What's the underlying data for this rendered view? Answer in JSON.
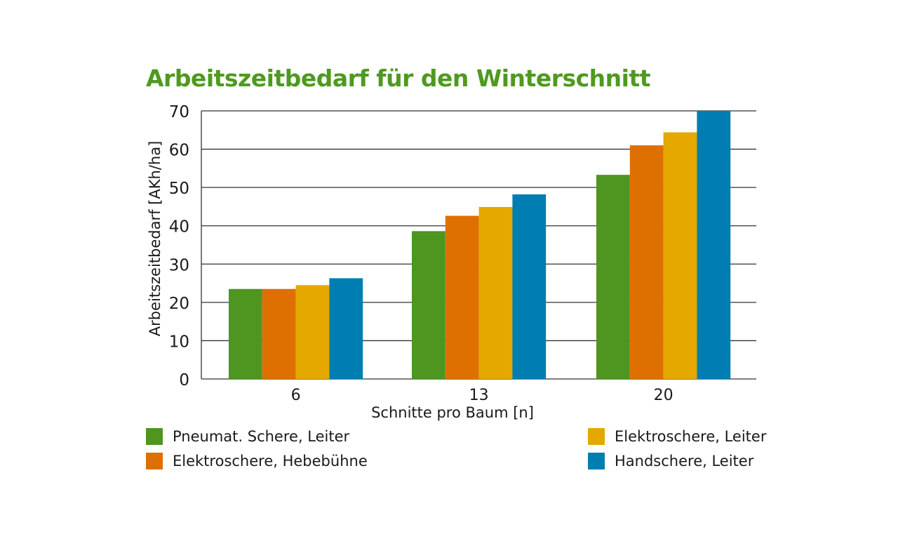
{
  "chart_data": {
    "type": "bar",
    "title": "Arbeitszeitbedarf für den Winterschnitt",
    "xlabel": "Schnitte pro Baum [n]",
    "ylabel": "Arbeitszeitbedarf [AKh/ha]",
    "categories": [
      "6",
      "13",
      "20"
    ],
    "ylim": [
      0,
      70
    ],
    "yticks": [
      "0",
      "10",
      "20",
      "30",
      "40",
      "50",
      "60",
      "70"
    ],
    "grid": true,
    "legend_placement": "bottom",
    "series": [
      {
        "name": "Pneumat. Schere, Leiter",
        "color": "#4e961f",
        "values": [
          23.5,
          38.6,
          53.3
        ]
      },
      {
        "name": "Elektroschere, Hebebühne",
        "color": "#dd7000",
        "values": [
          23.5,
          42.6,
          61.0
        ]
      },
      {
        "name": "Elektroschere, Leiter",
        "color": "#e5a800",
        "values": [
          24.5,
          44.9,
          64.4
        ]
      },
      {
        "name": "Handschere, Leiter",
        "color": "#007db1",
        "values": [
          26.3,
          48.2,
          70.0
        ]
      }
    ]
  }
}
